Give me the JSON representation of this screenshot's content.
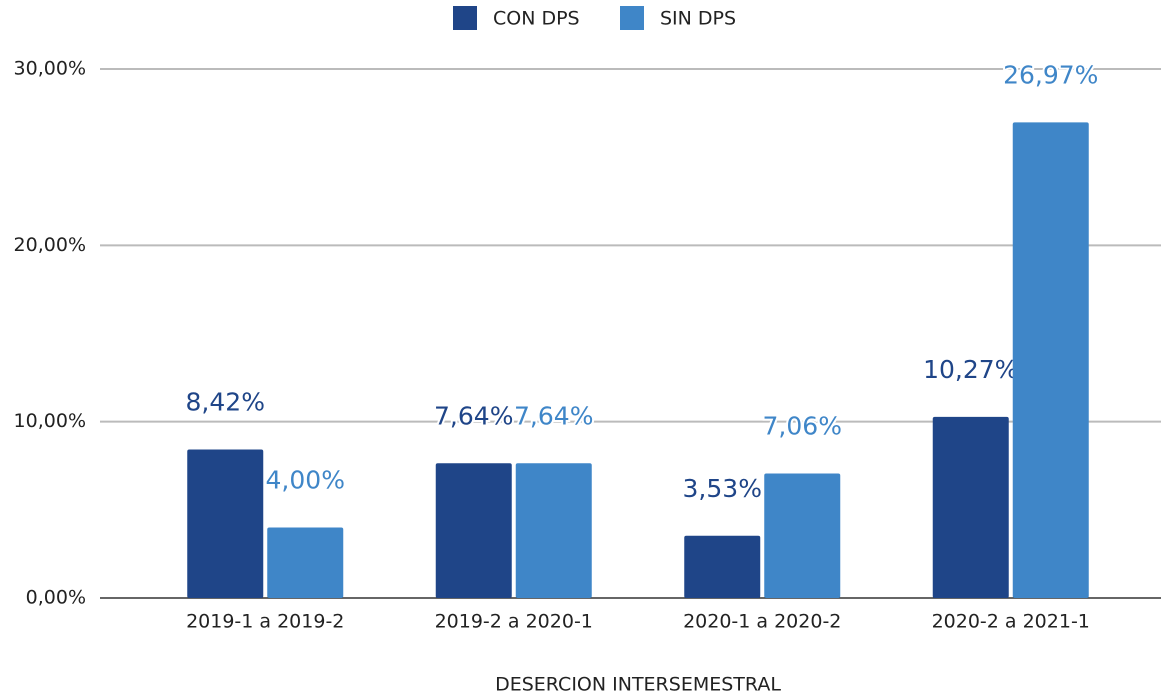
{
  "chart_data": {
    "type": "bar",
    "categories": [
      "2019-1 a 2019-2",
      "2019-2 a 2020-1",
      "2020-1 a 2020-2",
      "2020-2 a 2021-1"
    ],
    "series": [
      {
        "name": "CON DPS",
        "color": "#1f4588",
        "values": [
          8.42,
          7.64,
          3.53,
          10.27
        ],
        "value_labels": [
          "8,42%",
          "7,64%",
          "3,53%",
          "10,27%"
        ]
      },
      {
        "name": "SIN DPS",
        "color": "#3f86c8",
        "values": [
          4.0,
          7.64,
          7.06,
          26.97
        ],
        "value_labels": [
          "4,00%",
          "7,64%",
          "7,06%",
          "26,97%"
        ]
      }
    ],
    "x_label": "DESERCION INTERSEMESTRAL",
    "ylim": [
      0,
      30
    ],
    "yticks": [
      {
        "value": 0,
        "label": "0,00%"
      },
      {
        "value": 10,
        "label": "10,00%"
      },
      {
        "value": 20,
        "label": "20,00%"
      },
      {
        "value": 30,
        "label": "30,00%"
      }
    ],
    "grid": true,
    "legend": "top"
  }
}
